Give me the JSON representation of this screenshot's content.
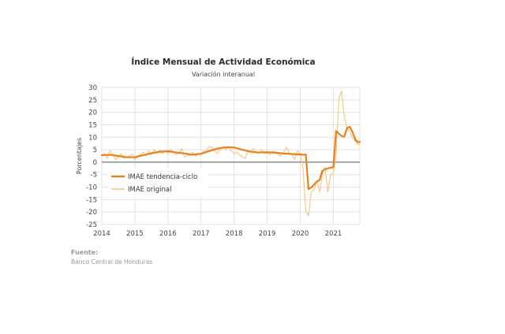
{
  "chart_data": {
    "type": "line",
    "title": "Índice Mensual de  Actividad Económica",
    "subtitle": "Variación interanual",
    "xlabel": "",
    "ylabel": "Porcentajes",
    "xlim": [
      2014,
      2021.8
    ],
    "ylim": [
      -25,
      30
    ],
    "yticks": [
      30,
      25,
      20,
      15,
      10,
      5,
      0,
      -5,
      -10,
      -15,
      -20,
      -25
    ],
    "xticks": [
      2014,
      2015,
      2016,
      2017,
      2018,
      2019,
      2020,
      2021
    ],
    "xtick_labels": [
      "2014",
      "2015",
      "2016",
      "2017",
      "2018",
      "2019",
      "2020",
      "2021"
    ],
    "grid": "vertical and horizontal, light gray",
    "legend_position": "left-center",
    "colors": {
      "trend": "#E8821E",
      "original": "#F9C37C",
      "zero_line": "#555555",
      "grid": "#E2E2E2"
    },
    "series": [
      {
        "name": "IMAE tendencia-ciclo",
        "x": [
          2014.0,
          2014.25,
          2014.5,
          2014.75,
          2015.0,
          2015.25,
          2015.5,
          2015.75,
          2016.0,
          2016.25,
          2016.5,
          2016.75,
          2017.0,
          2017.25,
          2017.5,
          2017.75,
          2018.0,
          2018.25,
          2018.5,
          2018.75,
          2019.0,
          2019.25,
          2019.5,
          2019.75,
          2020.0,
          2020.1,
          2020.167,
          2020.25,
          2020.333,
          2020.417,
          2020.5,
          2020.583,
          2020.667,
          2020.75,
          2020.833,
          2020.917,
          2021.0,
          2021.083,
          2021.167,
          2021.25,
          2021.333,
          2021.417,
          2021.5,
          2021.583,
          2021.667,
          2021.75,
          2021.8
        ],
        "values": [
          2.8,
          3.0,
          2.5,
          2.0,
          2.0,
          2.8,
          3.6,
          4.2,
          4.4,
          3.9,
          3.5,
          3.0,
          3.4,
          4.5,
          5.5,
          6.0,
          5.9,
          5.0,
          4.2,
          3.9,
          4.0,
          3.8,
          3.5,
          3.3,
          3.1,
          3.0,
          3.1,
          -10.8,
          -10.2,
          -9.0,
          -7.8,
          -7.2,
          -3.5,
          -2.8,
          -2.5,
          -2.2,
          -2.0,
          12.5,
          11.5,
          10.5,
          10.3,
          13.8,
          14.2,
          12.0,
          9.0,
          8.0,
          8.2
        ]
      },
      {
        "name": "IMAE original",
        "x": [
          2014.0,
          2014.083,
          2014.167,
          2014.25,
          2014.333,
          2014.417,
          2014.5,
          2014.583,
          2014.667,
          2014.75,
          2014.833,
          2014.917,
          2015.0,
          2015.083,
          2015.167,
          2015.25,
          2015.333,
          2015.417,
          2015.5,
          2015.583,
          2015.667,
          2015.75,
          2015.833,
          2015.917,
          2016.0,
          2016.083,
          2016.167,
          2016.25,
          2016.333,
          2016.417,
          2016.5,
          2016.583,
          2016.667,
          2016.75,
          2016.833,
          2016.917,
          2017.0,
          2017.083,
          2017.167,
          2017.25,
          2017.333,
          2017.417,
          2017.5,
          2017.583,
          2017.667,
          2017.75,
          2017.833,
          2017.917,
          2018.0,
          2018.083,
          2018.167,
          2018.25,
          2018.333,
          2018.417,
          2018.5,
          2018.583,
          2018.667,
          2018.75,
          2018.833,
          2018.917,
          2019.0,
          2019.083,
          2019.167,
          2019.25,
          2019.333,
          2019.417,
          2019.5,
          2019.583,
          2019.667,
          2019.75,
          2019.833,
          2019.917,
          2020.0,
          2020.083,
          2020.167,
          2020.25,
          2020.333,
          2020.417,
          2020.5,
          2020.583,
          2020.667,
          2020.75,
          2020.833,
          2020.917,
          2021.0,
          2021.083,
          2021.167,
          2021.25,
          2021.333,
          2021.417,
          2021.5,
          2021.583,
          2021.667,
          2021.75,
          2021.8
        ],
        "values": [
          2.5,
          3.5,
          1.5,
          4.5,
          3.0,
          1.0,
          2.0,
          3.5,
          1.5,
          2.0,
          2.5,
          3.2,
          1.0,
          2.5,
          3.0,
          4.0,
          2.5,
          4.5,
          3.0,
          5.0,
          3.5,
          4.8,
          3.5,
          4.5,
          3.5,
          5.2,
          4.0,
          3.0,
          3.5,
          5.5,
          2.0,
          3.0,
          2.5,
          4.0,
          2.5,
          3.5,
          3.0,
          4.5,
          5.0,
          6.3,
          6.0,
          4.5,
          3.5,
          5.5,
          6.3,
          5.0,
          6.5,
          4.5,
          3.5,
          4.0,
          3.0,
          2.0,
          1.5,
          4.5,
          4.0,
          5.5,
          4.0,
          3.5,
          5.0,
          3.5,
          3.8,
          3.0,
          4.5,
          4.0,
          3.0,
          2.5,
          4.0,
          6.0,
          3.5,
          3.0,
          1.0,
          4.5,
          3.5,
          -2.5,
          -19.5,
          -21.5,
          -12.0,
          -11.0,
          -7.5,
          -12.0,
          -5.0,
          -2.0,
          -12.0,
          -5.0,
          -4.5,
          3.0,
          25.5,
          28.5,
          18.0,
          13.5,
          12.0,
          9.5,
          8.5,
          7.0,
          7.5
        ]
      }
    ],
    "source_label": "Fuente:",
    "source_text": "Banco Central de Honduras"
  }
}
